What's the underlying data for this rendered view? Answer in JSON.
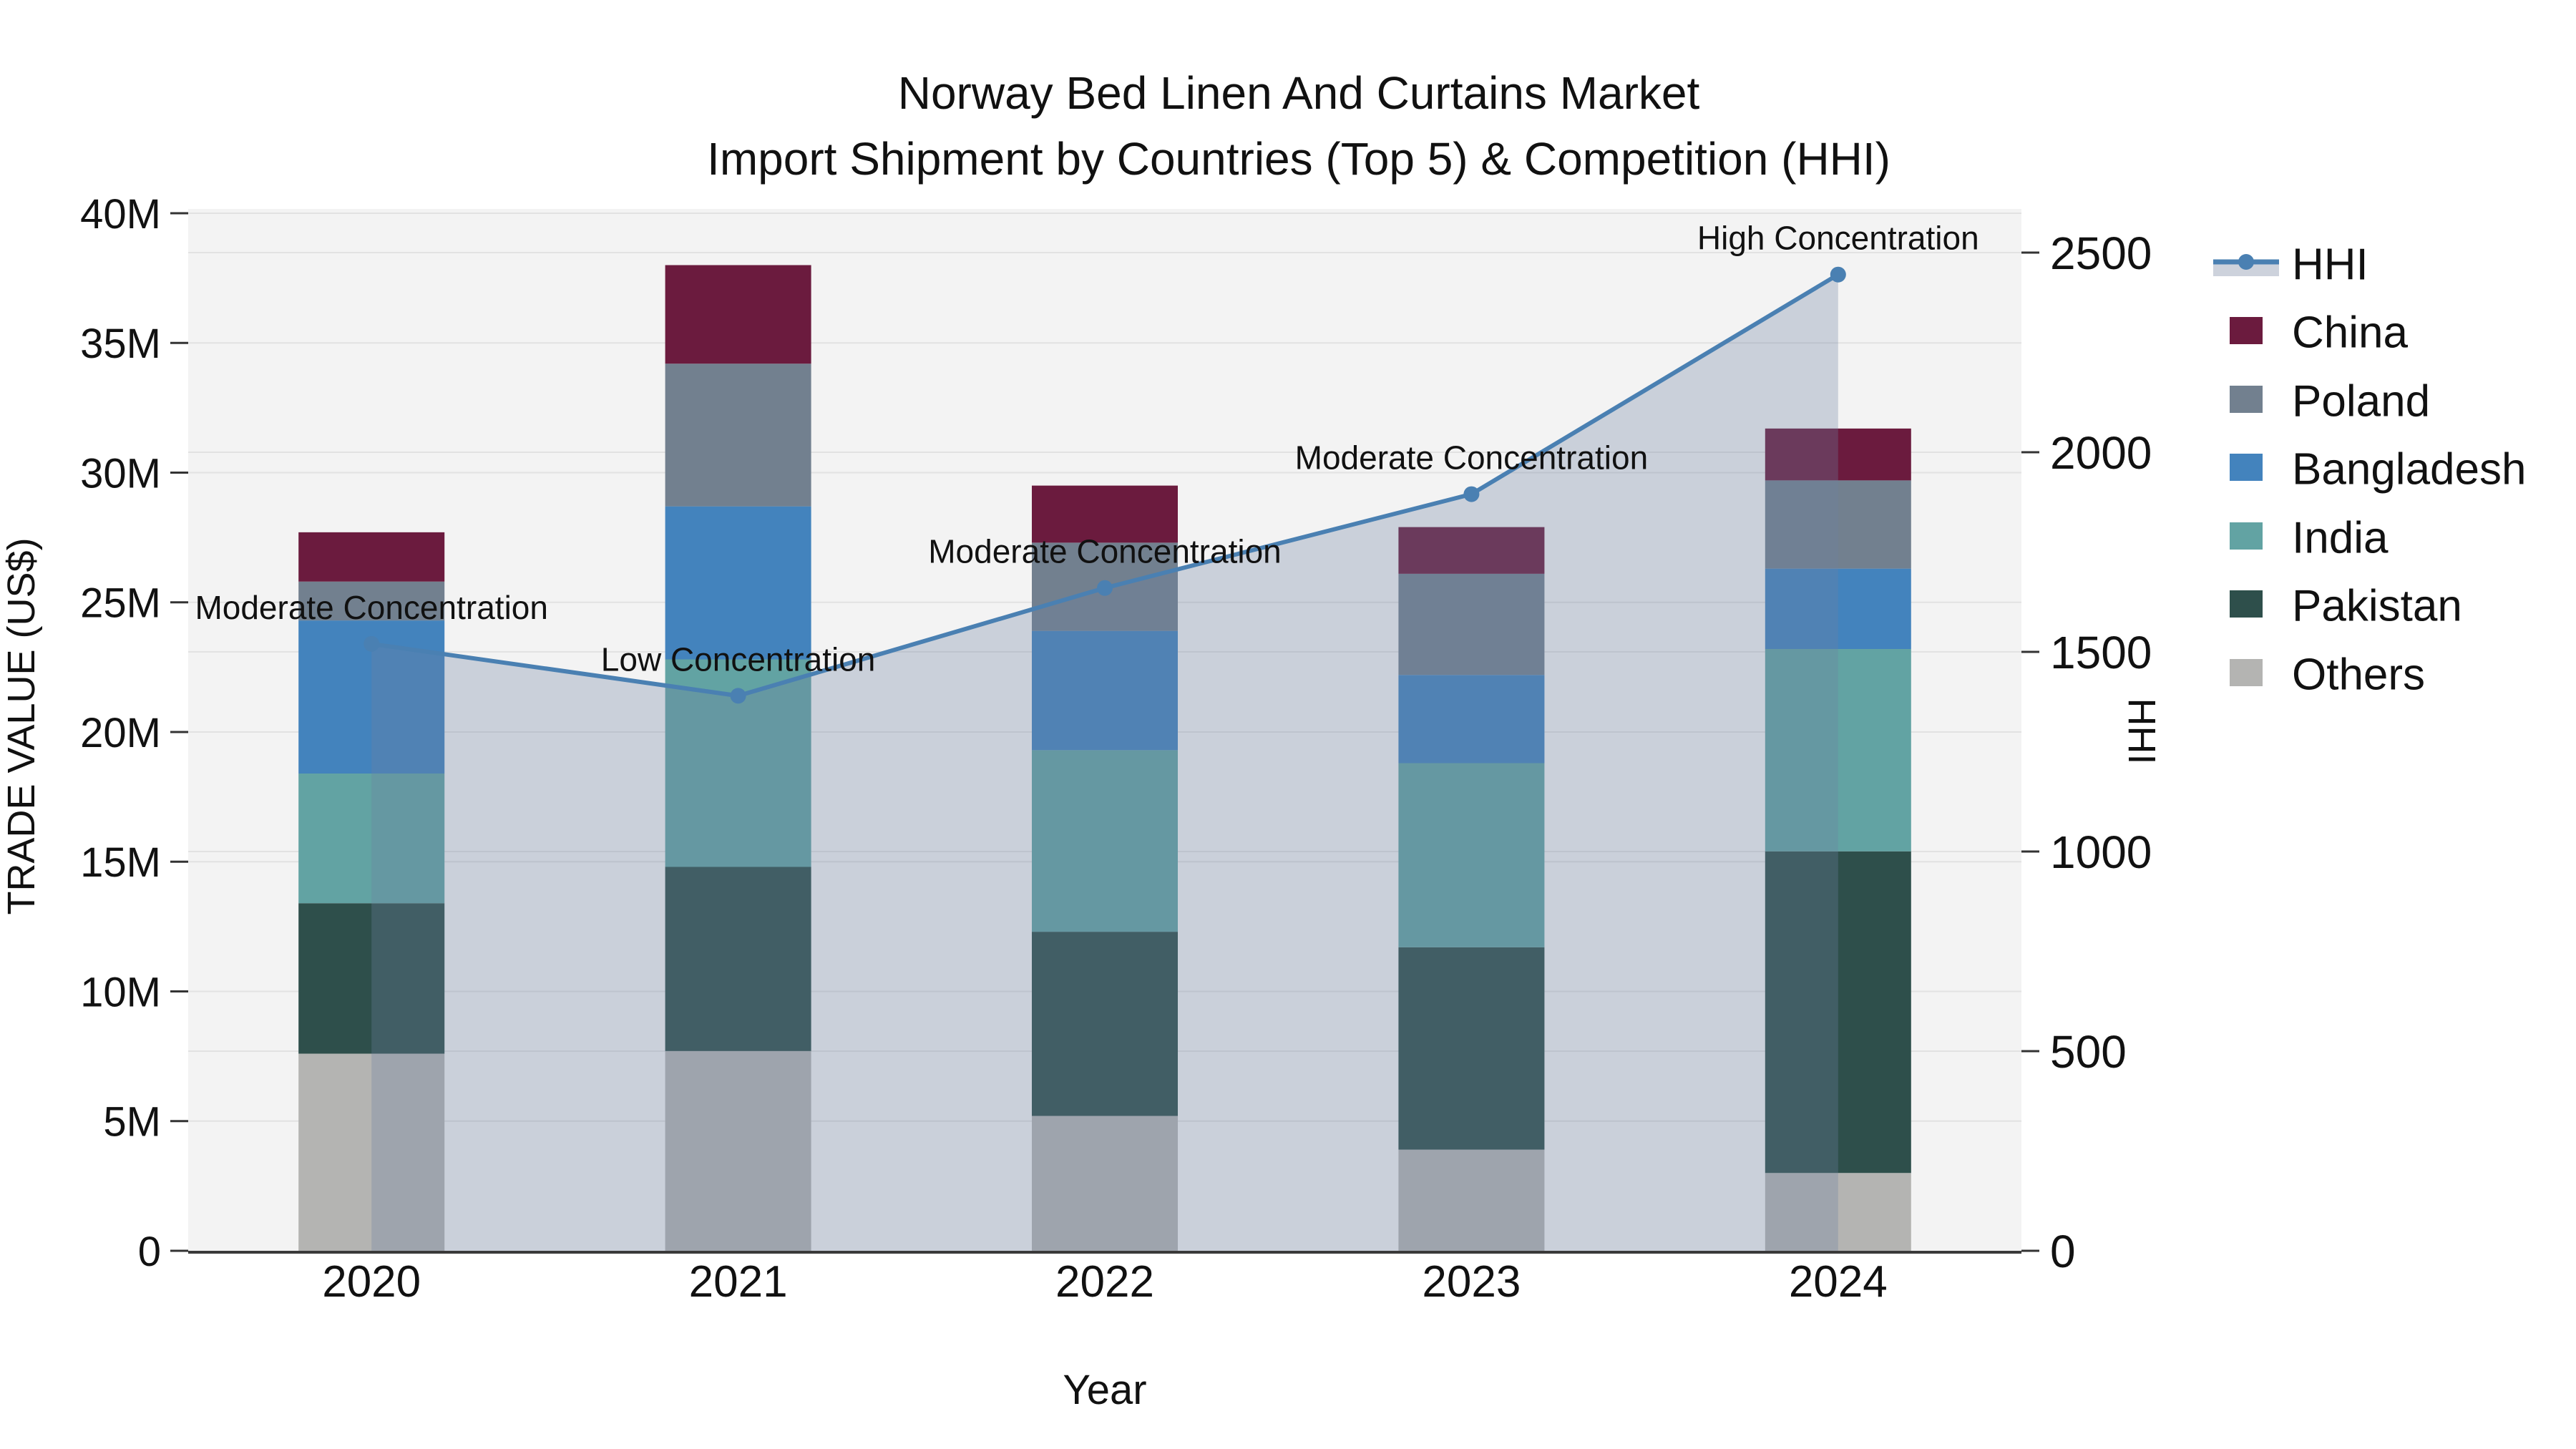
{
  "title": {
    "line1": "Norway Bed Linen And Curtains Market",
    "line2": "Import Shipment by Countries (Top 5) & Competition (HHI)"
  },
  "axes": {
    "left_title": "TRADE VALUE (US$)",
    "left_ticks": [
      "0",
      "5M",
      "10M",
      "15M",
      "20M",
      "25M",
      "30M",
      "35M",
      "40M"
    ],
    "right_title": "HHI",
    "right_ticks": [
      "0",
      "500",
      "1000",
      "1500",
      "2000",
      "2500"
    ],
    "x_title": "Year",
    "x_ticks": [
      "2020",
      "2021",
      "2022",
      "2023",
      "2024"
    ]
  },
  "legend": {
    "items": [
      {
        "label": "HHI",
        "kind": "line"
      },
      {
        "label": "China",
        "kind": "patch",
        "color": "#6B1B3E"
      },
      {
        "label": "Poland",
        "kind": "patch",
        "color": "#72808F"
      },
      {
        "label": "Bangladesh",
        "kind": "patch",
        "color": "#4383BD"
      },
      {
        "label": "India",
        "kind": "patch",
        "color": "#62A3A3"
      },
      {
        "label": "Pakistan",
        "kind": "patch",
        "color": "#2E4F4B"
      },
      {
        "label": "Others",
        "kind": "patch",
        "color": "#B4B4B2"
      }
    ]
  },
  "annotations": [
    {
      "year": "2020",
      "text": "Moderate Concentration"
    },
    {
      "year": "2021",
      "text": "Low Concentration"
    },
    {
      "year": "2022",
      "text": "Moderate Concentration"
    },
    {
      "year": "2023",
      "text": "Moderate Concentration"
    },
    {
      "year": "2024",
      "text": "High Concentration"
    }
  ],
  "colors": {
    "plot_bg": "#F3F3F3",
    "grid": "#E2E2E2",
    "spine": "#3A3A3A",
    "tick": "#333333",
    "hhi_line": "#4A80B2",
    "area_fill": "rgba(110,130,160,0.31)",
    "legend_area_band": "#CDD2DC",
    "text": "#111111"
  },
  "chart_data": {
    "type": "bar",
    "stacked": true,
    "title": "Norway Bed Linen And Curtains Market — Import Shipment by Countries (Top 5) & Competition (HHI)",
    "xlabel": "Year",
    "ylabel_left": "TRADE VALUE (US$)",
    "ylabel_right": "HHI",
    "ylim_left_millions": [
      0,
      40
    ],
    "ylim_right": [
      0,
      2500
    ],
    "grid": true,
    "legend_position": "right-outside",
    "categories": [
      "2020",
      "2021",
      "2022",
      "2023",
      "2024"
    ],
    "unit": "million US$",
    "series": [
      {
        "name": "China",
        "values": [
          1.9,
          3.8,
          2.2,
          1.8,
          2.0
        ]
      },
      {
        "name": "Poland",
        "values": [
          1.5,
          5.5,
          3.4,
          3.9,
          3.4
        ]
      },
      {
        "name": "Bangladesh",
        "values": [
          5.9,
          5.9,
          4.6,
          3.4,
          3.1
        ]
      },
      {
        "name": "India",
        "values": [
          5.0,
          8.0,
          7.0,
          7.1,
          7.8
        ]
      },
      {
        "name": "Pakistan",
        "values": [
          5.8,
          7.1,
          7.1,
          7.8,
          12.4
        ]
      },
      {
        "name": "Others",
        "values": [
          7.6,
          7.7,
          5.2,
          3.9,
          3.0
        ]
      }
    ],
    "totals_millions": [
      27.7,
      38.0,
      29.5,
      27.9,
      31.7
    ],
    "line_series": {
      "name": "HHI",
      "axis": "right",
      "type": "line+area",
      "values": [
        1520,
        1390,
        1660,
        1895,
        2445
      ]
    }
  }
}
